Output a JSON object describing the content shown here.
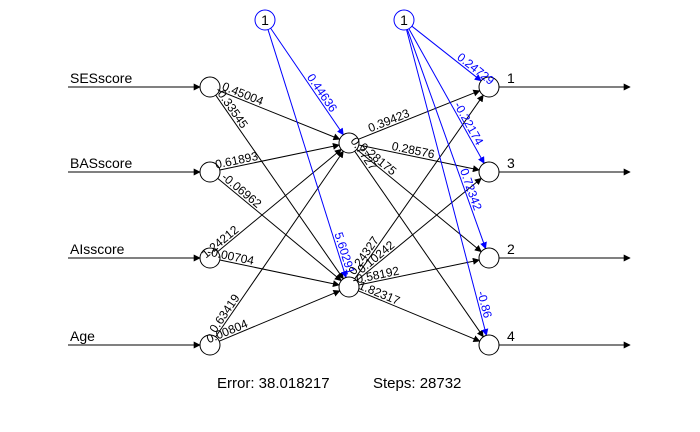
{
  "inputs": [
    "SESscore",
    "BASscore",
    "AIsscore",
    "Age"
  ],
  "hidden_count": 2,
  "outputs": [
    "1",
    "3",
    "2",
    "4"
  ],
  "bias_label": "1",
  "weights_input_hidden": [
    [
      "0.45004",
      "-0.33545"
    ],
    [
      "0.61893",
      "-0.06962"
    ],
    [
      "1.24212",
      "-0.00704"
    ],
    [
      "0.63419",
      "0.00804"
    ]
  ],
  "weights_hidden_output": [
    [
      "0.39423",
      "0.28576",
      "0.28175",
      "0.7727"
    ],
    [
      "0.24327",
      "0.10242",
      "-0.58192",
      "1.82317"
    ]
  ],
  "bias_weights_hidden": [
    "0.44636",
    "5.60291"
  ],
  "bias_weights_output": [
    "0.24729",
    "-0.22174",
    "0.72342",
    "-0.86"
  ],
  "footer": {
    "error_label": "Error: 38.018217",
    "steps_label": "Steps: 28732"
  },
  "colors": {
    "weights": "#000000",
    "bias": "#0000ff"
  }
}
